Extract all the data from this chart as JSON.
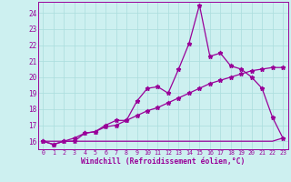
{
  "xlabel": "Windchill (Refroidissement éolien,°C)",
  "bg_color": "#cdf0f0",
  "line_color": "#990099",
  "xmin": -0.5,
  "xmax": 23.5,
  "ymin": 15.5,
  "ymax": 24.7,
  "yticks": [
    16,
    17,
    18,
    19,
    20,
    21,
    22,
    23,
    24
  ],
  "xticks": [
    0,
    1,
    2,
    3,
    4,
    5,
    6,
    7,
    8,
    9,
    10,
    11,
    12,
    13,
    14,
    15,
    16,
    17,
    18,
    19,
    20,
    21,
    22,
    23
  ],
  "series1_x": [
    0,
    1,
    2,
    3,
    4,
    5,
    6,
    7,
    8,
    9,
    10,
    11,
    12,
    13,
    14,
    15,
    16,
    17,
    18,
    19,
    20,
    21,
    22,
    23
  ],
  "series1_y": [
    16.0,
    15.8,
    16.0,
    16.0,
    16.5,
    16.6,
    17.0,
    17.3,
    17.3,
    18.5,
    19.3,
    19.4,
    19.0,
    20.5,
    22.1,
    24.5,
    21.3,
    21.5,
    20.7,
    20.5,
    20.0,
    19.3,
    17.5,
    16.2
  ],
  "series2_x": [
    0,
    1,
    2,
    3,
    4,
    5,
    6,
    7,
    8,
    9,
    10,
    11,
    12,
    13,
    14,
    15,
    16,
    17,
    18,
    19,
    20,
    21,
    22,
    23
  ],
  "series2_y": [
    16.0,
    15.8,
    16.0,
    16.2,
    16.5,
    16.6,
    16.9,
    17.0,
    17.3,
    17.6,
    17.9,
    18.1,
    18.4,
    18.7,
    19.0,
    19.3,
    19.6,
    19.8,
    20.0,
    20.2,
    20.4,
    20.5,
    20.6,
    20.6
  ],
  "series3_x": [
    0,
    22,
    23
  ],
  "series3_y": [
    16.0,
    16.0,
    16.2
  ],
  "grid_color": "#aadddd",
  "marker_size": 3.5,
  "line_width": 0.9
}
